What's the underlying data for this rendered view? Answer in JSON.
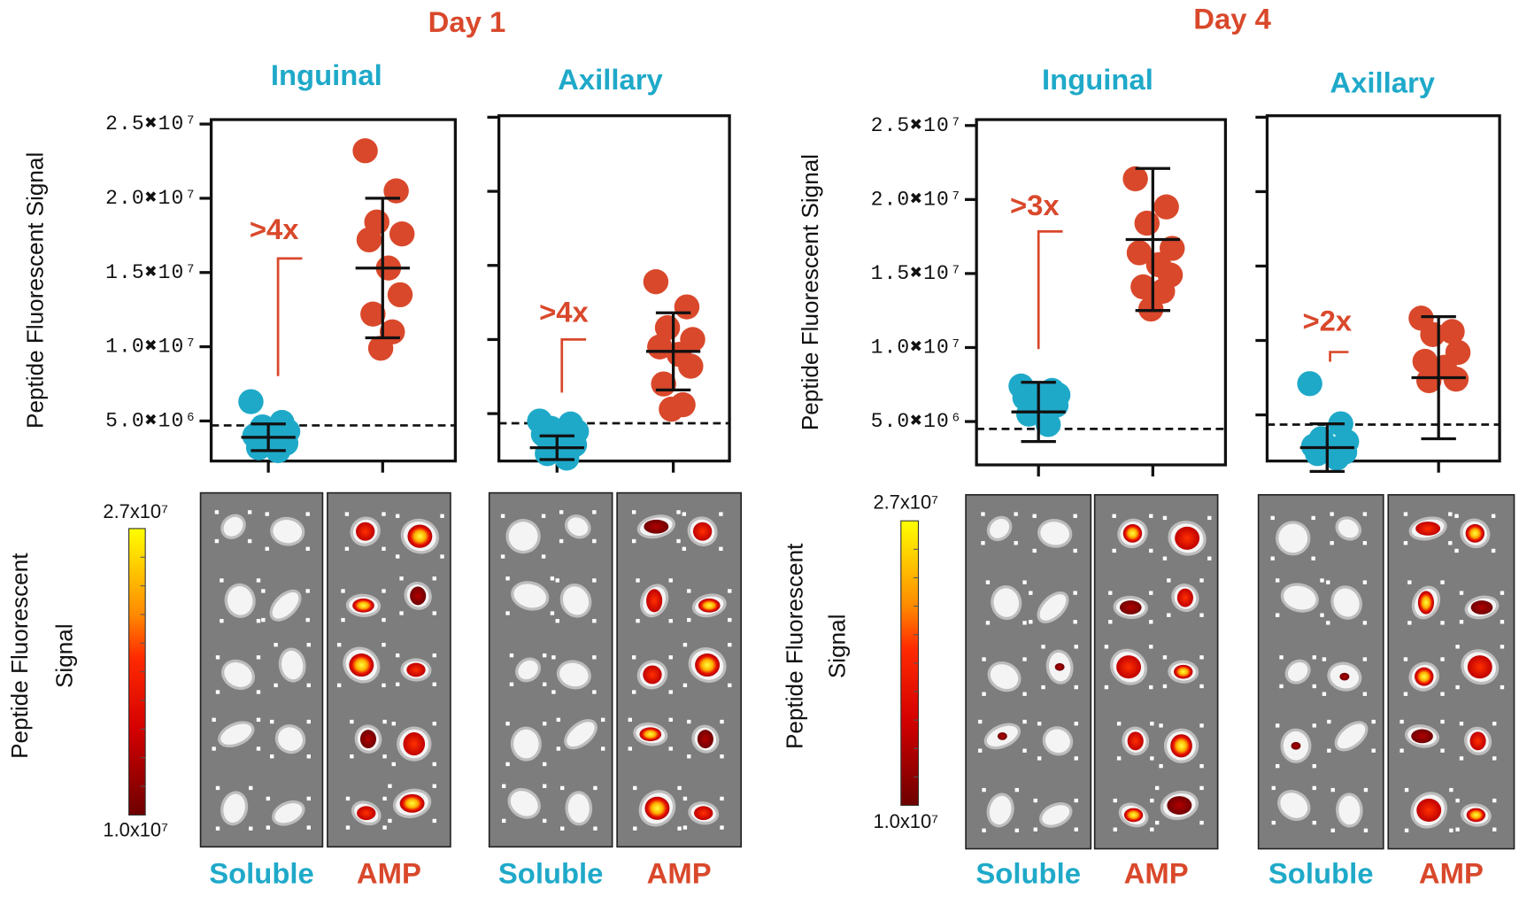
{
  "panels": [
    {
      "title": "Day 1",
      "colorbar": {
        "ticks": [
          {
            "value": 27000000,
            "label": "2.7x10⁷"
          },
          {
            "value": 10000000,
            "label": "1.0x10⁷"
          }
        ],
        "label": [
          "Peptide Fluorescent",
          "Signal"
        ]
      }
    },
    {
      "title": "Day 4",
      "colorbar": {
        "ticks": [
          {
            "value": 27000000,
            "label": "2.7x10⁷"
          },
          {
            "value": 10000000,
            "label": "1.0x10⁷"
          }
        ],
        "label": [
          "Peptide Fluorescent",
          "Signal"
        ]
      }
    }
  ],
  "chart_data": [
    {
      "type": "strip",
      "title": "Inguinal",
      "ylabel": "Peptide Fluorescent Signal",
      "ylim": [
        2300000,
        25300000
      ],
      "yticks": [
        {
          "value": 5000000,
          "label": "5.0✖10⁶"
        },
        {
          "value": 10000000,
          "label": "1.0✖10⁷"
        },
        {
          "value": 15000000,
          "label": "1.5✖10⁷"
        },
        {
          "value": 20000000,
          "label": "2.0✖10⁷"
        },
        {
          "value": 25000000,
          "label": "2.5✖10⁷"
        }
      ],
      "threshold": 4700000,
      "annotation": ">4x",
      "series": [
        {
          "name": "Soluble",
          "color": "#1fa9c9",
          "values": [
            6300000,
            4900000,
            4600000,
            4300000,
            4000000,
            3800000,
            3500000,
            3200000,
            3000000
          ],
          "mean": 3900000,
          "sd": 900000
        },
        {
          "name": "AMP",
          "color": "#d9482b",
          "values": [
            23200000,
            20500000,
            18400000,
            17600000,
            17200000,
            15300000,
            13500000,
            12200000,
            11000000,
            9900000
          ],
          "mean": 15300000,
          "sd": 4700000
        }
      ]
    },
    {
      "type": "strip",
      "title": "Axillary",
      "ylim": [
        1800000,
        25100000
      ],
      "yticks": [
        5000000,
        10000000,
        15000000,
        20000000,
        25000000
      ],
      "threshold": 4350000,
      "annotation": ">4x",
      "series": [
        {
          "name": "Soluble",
          "color": "#1fa9c9",
          "values": [
            4500000,
            4300000,
            4000000,
            3800000,
            3600000,
            3300000,
            2900000,
            2300000,
            2000000
          ],
          "mean": 2700000,
          "sd": 800000
        },
        {
          "name": "AMP",
          "color": "#d9482b",
          "values": [
            13900000,
            12200000,
            10800000,
            10000000,
            9500000,
            9000000,
            8200000,
            7000000,
            5600000,
            5300000
          ],
          "mean": 9200000,
          "sd": 2600000
        }
      ]
    },
    {
      "type": "strip",
      "title": "Inguinal",
      "ylabel": "Peptide Fluorescent Signal",
      "ylim": [
        2070000,
        25400000
      ],
      "yticks": [
        {
          "value": 5000000,
          "label": "5.0✖10⁶"
        },
        {
          "value": 10000000,
          "label": "1.0✖10⁷"
        },
        {
          "value": 15000000,
          "label": "1.5✖10⁷"
        },
        {
          "value": 20000000,
          "label": "2.0✖10⁷"
        },
        {
          "value": 25000000,
          "label": "2.5✖10⁷"
        }
      ],
      "threshold": 4500000,
      "annotation": ">3x",
      "series": [
        {
          "name": "Soluble",
          "color": "#1fa9c9",
          "values": [
            7400000,
            7100000,
            6900000,
            6800000,
            6600000,
            6400000,
            6100000,
            5500000,
            4800000
          ],
          "mean": 5650000,
          "sd": 2000000
        },
        {
          "name": "AMP",
          "color": "#d9482b",
          "values": [
            21400000,
            19500000,
            18400000,
            16700000,
            16400000,
            15600000,
            14900000,
            14100000,
            13800000,
            12600000
          ],
          "mean": 17300000,
          "sd": 4800000
        }
      ]
    },
    {
      "type": "strip",
      "title": "Axillary",
      "ylim": [
        1900000,
        25100000
      ],
      "yticks": [
        5000000,
        10000000,
        15000000,
        20000000,
        25000000
      ],
      "threshold": 4350000,
      "annotation": ">2x",
      "series": [
        {
          "name": "Soluble",
          "color": "#1fa9c9",
          "values": [
            7100000,
            4400000,
            3400000,
            3200000,
            2900000,
            2700000,
            2500000,
            2400000,
            2100000
          ],
          "mean": 2800000,
          "sd": 1600000
        },
        {
          "name": "AMP",
          "color": "#d9482b",
          "values": [
            11500000,
            10600000,
            10400000,
            9200000,
            8600000,
            8200000,
            7400000,
            7300000
          ],
          "mean": 7500000,
          "sd": 4100000
        }
      ]
    }
  ]
}
